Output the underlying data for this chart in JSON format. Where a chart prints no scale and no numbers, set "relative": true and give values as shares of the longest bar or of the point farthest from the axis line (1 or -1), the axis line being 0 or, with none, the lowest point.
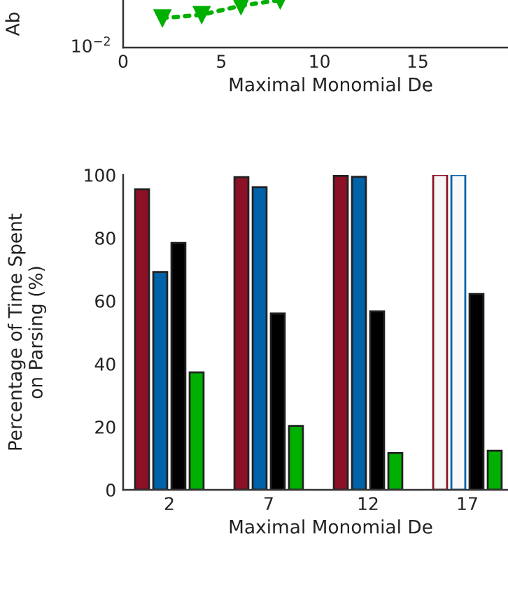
{
  "chart_data": [
    {
      "type": "line",
      "xlabel": "Maximal Monomial De",
      "ylabel": "Ab",
      "relative": true,
      "annotations": [
        "10$^{−2}$"
      ],
      "xlim": [
        0,
        19.6
      ],
      "xticks": [
        0,
        5,
        10,
        15
      ],
      "marker": "triangle",
      "line_style": "dotted",
      "grid": false,
      "legend": false,
      "series": [
        {
          "color": "#00b000",
          "x": [
            2,
            4,
            6,
            8
          ],
          "values": [
            0.62,
            0.69,
            0.88,
            1
          ]
        }
      ]
    },
    {
      "type": "bar",
      "xlabel": "Maximal Monomial De",
      "ylabel": "Percentage of Time Spent\non Parsing (%)",
      "categories": [
        "2",
        "7",
        "12",
        "17"
      ],
      "ylim": [
        0,
        100
      ],
      "yticks": [
        0,
        20,
        40,
        60,
        80,
        100
      ],
      "grid": false,
      "legend": false,
      "series": [
        {
          "color": "#8c1127",
          "values": [
            95.4,
            99.3,
            99.7,
            100
          ],
          "colors": [
            "#8c1127",
            "#8c1127",
            "#8c1127",
            "#f6f6f6"
          ]
        },
        {
          "color": "#0062a8",
          "values": [
            69.2,
            96.1,
            99.4,
            100
          ],
          "colors": [
            "#0062a8",
            "#0062a8",
            "#0062a8",
            "#f6f8fa"
          ]
        },
        {
          "color": "#000000",
          "values": [
            78.4,
            56,
            56.7,
            62.2
          ]
        },
        {
          "color": "#00b000",
          "values": [
            37.3,
            20.3,
            11.7,
            12.4
          ]
        }
      ]
    }
  ]
}
